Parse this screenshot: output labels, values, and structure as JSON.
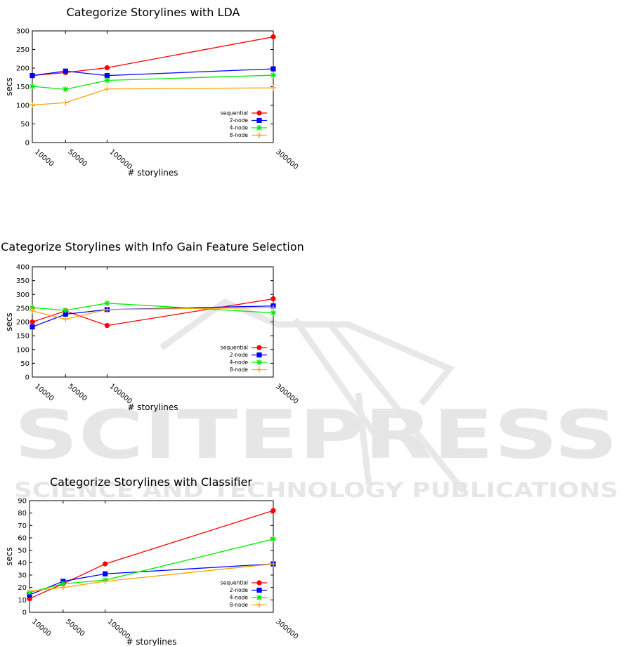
{
  "watermark": {
    "brand": "SCITEPRESS",
    "tagline": "SCIENCE AND TECHNOLOGY PUBLICATIONS",
    "color": "#e6e6e6"
  },
  "series_styles": [
    {
      "name": "sequential",
      "color": "#ff0000",
      "marker": "circle"
    },
    {
      "name": "2-node",
      "color": "#0000ff",
      "marker": "square"
    },
    {
      "name": "4-node",
      "color": "#00ee00",
      "marker": "star"
    },
    {
      "name": "8-node",
      "color": "#ffa500",
      "marker": "plus"
    }
  ],
  "chart_data": [
    {
      "type": "line",
      "title": "Categorize Storylines with LDA",
      "xlabel": "# storylines",
      "ylabel": "secs",
      "x": [
        10000,
        50000,
        100000,
        300000
      ],
      "x_ticks": [
        "10000",
        "50000",
        "100000",
        "300000"
      ],
      "xlim": [
        10000,
        300000
      ],
      "ylim": [
        0,
        300
      ],
      "y_ticks": [
        0,
        50,
        100,
        150,
        200,
        250,
        300
      ],
      "grid": false,
      "legend_position": "bottom-right",
      "series": [
        {
          "name": "sequential",
          "values": [
            180,
            188,
            201,
            284
          ]
        },
        {
          "name": "2-node",
          "values": [
            180,
            192,
            180,
            198
          ]
        },
        {
          "name": "4-node",
          "values": [
            151,
            143,
            167,
            181
          ]
        },
        {
          "name": "8-node",
          "values": [
            101,
            107,
            144,
            147
          ]
        }
      ]
    },
    {
      "type": "line",
      "title": "Categorize Storylines with Info Gain Feature Selection",
      "xlabel": "# storylines",
      "ylabel": "secs",
      "x": [
        10000,
        50000,
        100000,
        300000
      ],
      "x_ticks": [
        "10000",
        "50000",
        "100000",
        "300000"
      ],
      "xlim": [
        10000,
        300000
      ],
      "ylim": [
        0,
        400
      ],
      "y_ticks": [
        0,
        50,
        100,
        150,
        200,
        250,
        300,
        350,
        400
      ],
      "grid": false,
      "legend_position": "bottom-right",
      "series": [
        {
          "name": "sequential",
          "values": [
            200,
            240,
            187,
            284
          ]
        },
        {
          "name": "2-node",
          "values": [
            182,
            228,
            245,
            258
          ]
        },
        {
          "name": "4-node",
          "values": [
            252,
            242,
            268,
            233
          ]
        },
        {
          "name": "8-node",
          "values": [
            240,
            210,
            245,
            252
          ]
        }
      ]
    },
    {
      "type": "line",
      "title": "Categorize Storylines with Classifier",
      "xlabel": "# storylines",
      "ylabel": "secs",
      "x": [
        10000,
        50000,
        100000,
        300000
      ],
      "x_ticks": [
        "10000",
        "50000",
        "100000",
        "300000"
      ],
      "xlim": [
        10000,
        300000
      ],
      "ylim": [
        0,
        90
      ],
      "y_ticks": [
        0,
        10,
        20,
        30,
        40,
        50,
        60,
        70,
        80,
        90
      ],
      "grid": false,
      "legend_position": "bottom-right",
      "series": [
        {
          "name": "sequential",
          "values": [
            11,
            23,
            39,
            82
          ]
        },
        {
          "name": "2-node",
          "values": [
            14,
            25,
            31,
            39
          ]
        },
        {
          "name": "4-node",
          "values": [
            16,
            23,
            26,
            59
          ]
        },
        {
          "name": "8-node",
          "values": [
            17,
            20,
            25,
            39
          ]
        }
      ]
    }
  ]
}
